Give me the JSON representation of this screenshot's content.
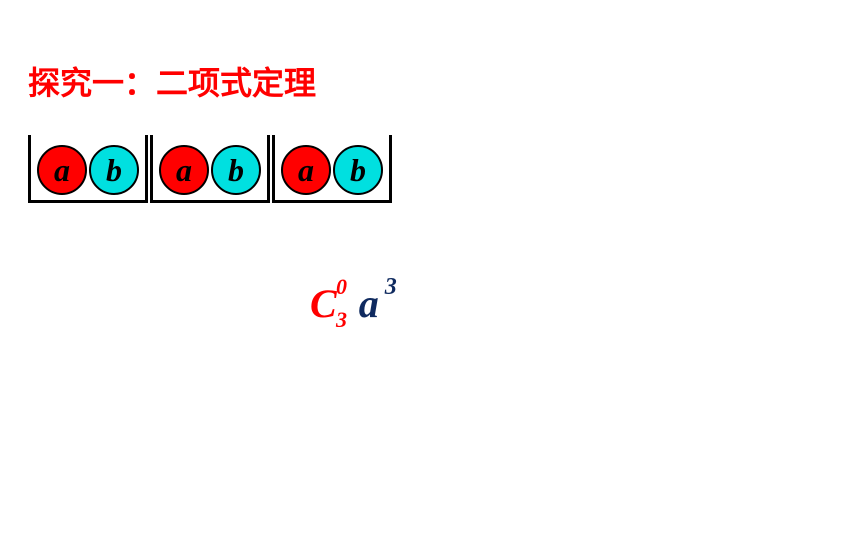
{
  "title": {
    "text": "探究一：二项式定理",
    "color": "#ff0000"
  },
  "boxes": {
    "count": 3,
    "ball_a": {
      "label": "a",
      "fill": "#ff0000",
      "text_color": "#000000"
    },
    "ball_b": {
      "label": "b",
      "fill": "#00e0e0",
      "text_color": "#000000"
    },
    "border_color": "#000000"
  },
  "formula": {
    "combo": {
      "C": "C",
      "sup": "0",
      "sub": "3",
      "color": "#ff0000"
    },
    "term": {
      "base": "a",
      "exp": "3",
      "color": "#0f2a5f"
    }
  },
  "colors": {
    "background": "#ffffff"
  }
}
